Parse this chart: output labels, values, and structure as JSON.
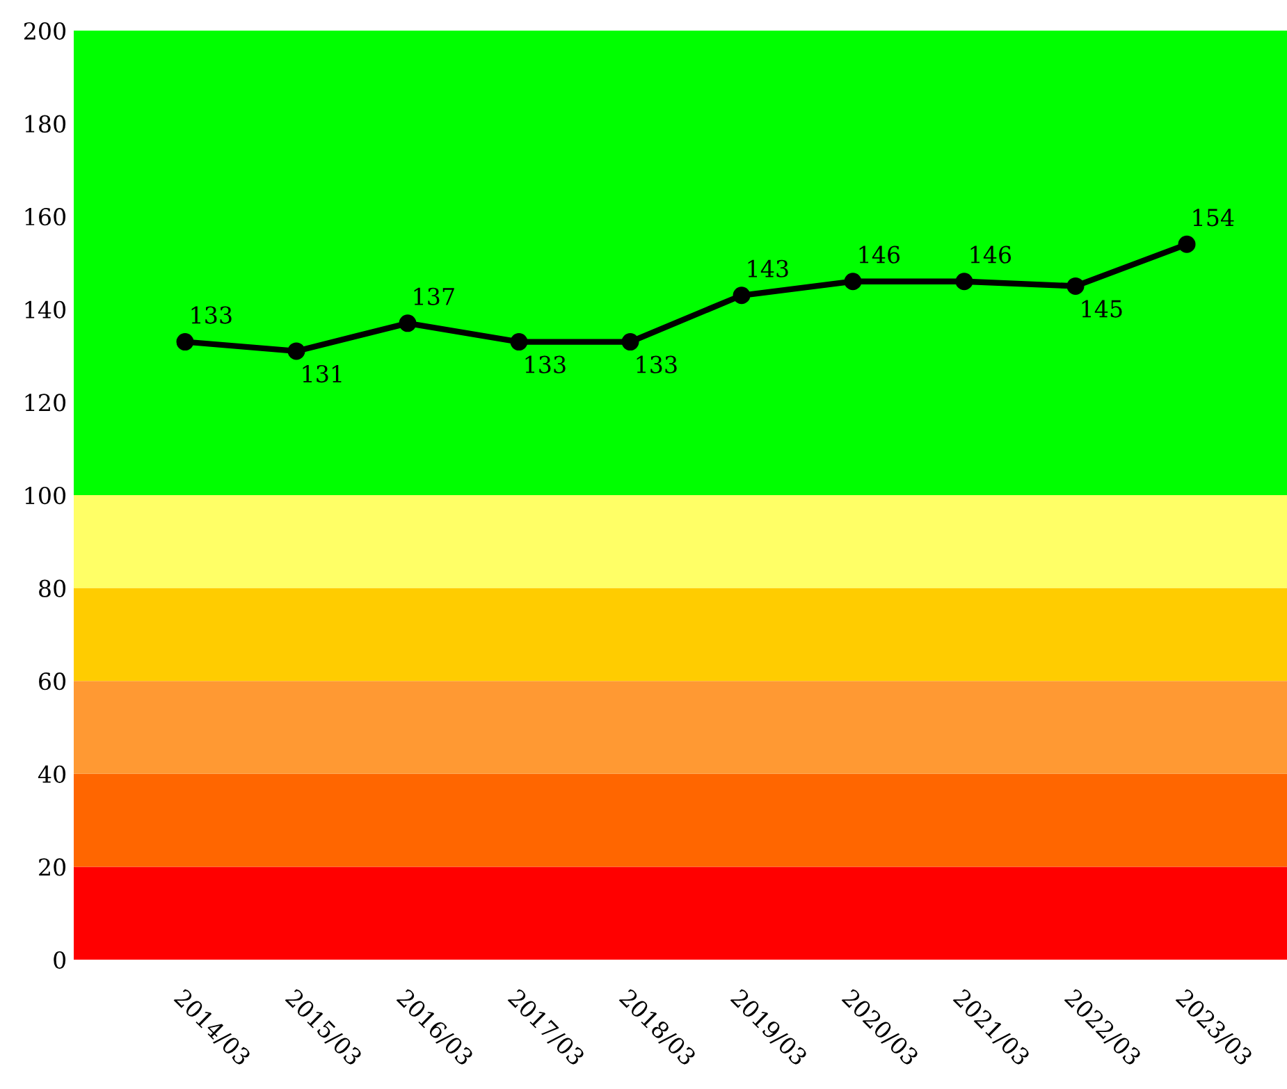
{
  "chart_data": {
    "type": "line",
    "categories": [
      "2014/03",
      "2015/03",
      "2016/03",
      "2017/03",
      "2018/03",
      "2019/03",
      "2020/03",
      "2021/03",
      "2022/03",
      "2023/03"
    ],
    "series": [
      {
        "color": "#000000",
        "values": [
          133,
          131,
          137,
          133,
          133,
          143,
          146,
          146,
          145,
          154
        ]
      }
    ],
    "ylim": [
      0,
      200
    ],
    "yticks": [
      0,
      20,
      40,
      60,
      80,
      100,
      120,
      140,
      160,
      180,
      200
    ],
    "bands": [
      {
        "axis": "y",
        "from": 0,
        "to": 20,
        "color": "#ff0000"
      },
      {
        "axis": "y",
        "from": 20,
        "to": 40,
        "color": "#ff6600"
      },
      {
        "axis": "y",
        "from": 40,
        "to": 60,
        "color": "#ff9933"
      },
      {
        "axis": "y",
        "from": 60,
        "to": 80,
        "color": "#ffcc00"
      },
      {
        "axis": "y",
        "from": 80,
        "to": 100,
        "color": "#ffff66"
      },
      {
        "axis": "y",
        "from": 100,
        "to": 200,
        "color": "#00ff00"
      }
    ],
    "marker": "circle",
    "line_style": "solid",
    "data_labels": true,
    "grid": false
  }
}
